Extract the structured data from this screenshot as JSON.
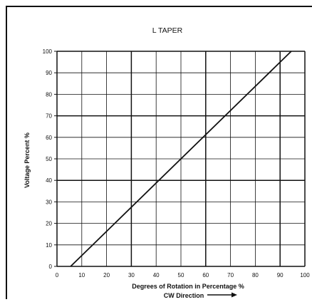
{
  "chart_data": {
    "type": "line",
    "title": "L TAPER",
    "xlabel": "Degrees of Rotation in Percentage %",
    "xlabel2": "CW Direction",
    "ylabel": "Voltage Percent %",
    "xlim": [
      0,
      100
    ],
    "ylim": [
      0,
      100
    ],
    "xticks": [
      0,
      10,
      20,
      30,
      40,
      50,
      60,
      70,
      80,
      90,
      100
    ],
    "yticks": [
      0,
      10,
      20,
      30,
      40,
      50,
      60,
      70,
      80,
      90,
      100
    ],
    "grid": true,
    "major_lines_x": [
      0,
      30,
      60,
      90
    ],
    "major_lines_y": [
      0,
      40,
      70,
      100
    ],
    "series": [
      {
        "x": [
          5.5,
          94.5
        ],
        "y": [
          0,
          100
        ]
      }
    ]
  }
}
